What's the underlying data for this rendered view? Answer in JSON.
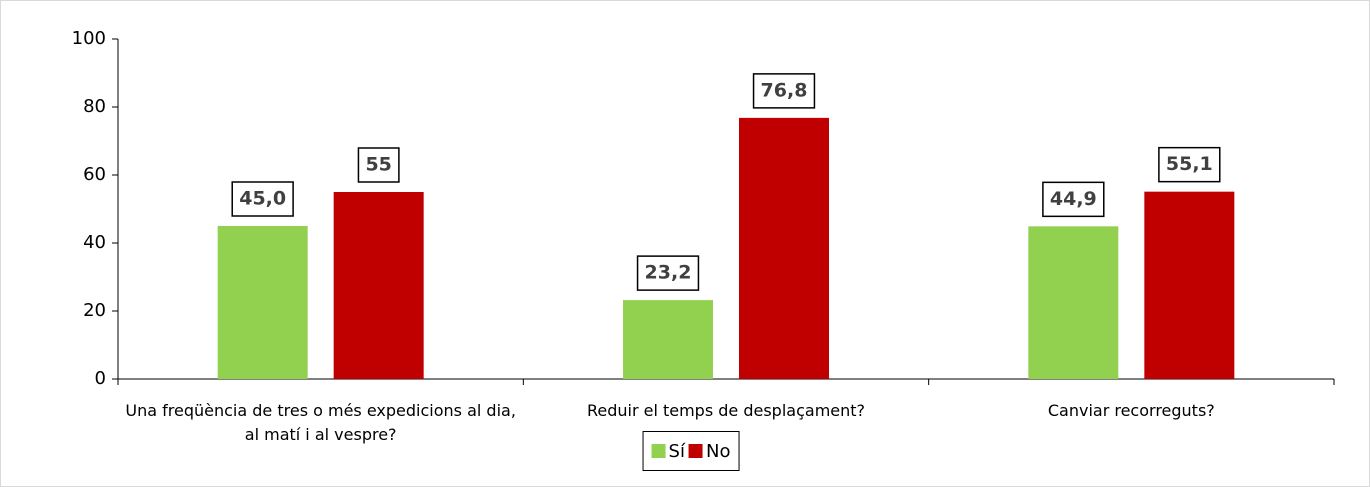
{
  "chart_data": {
    "type": "bar",
    "categories": [
      "Una freqüència de tres o més expedicions al dia, al matí i al vespre?",
      "Reduir el temps de desplaçament?",
      "Canviar recorreguts?"
    ],
    "series": [
      {
        "name": "Sí",
        "color": "#92d050",
        "values": [
          45.0,
          23.2,
          44.9
        ],
        "value_labels": [
          "45,0",
          "23,2",
          "44,9"
        ]
      },
      {
        "name": "No",
        "color": "#c00000",
        "values": [
          55,
          76.8,
          55.1
        ],
        "value_labels": [
          "55",
          "76,8",
          "55,1"
        ]
      }
    ],
    "ylim": [
      0,
      100
    ],
    "yticks": [
      0,
      20,
      40,
      60,
      80,
      100
    ],
    "grid": false,
    "legend": "bottom"
  }
}
